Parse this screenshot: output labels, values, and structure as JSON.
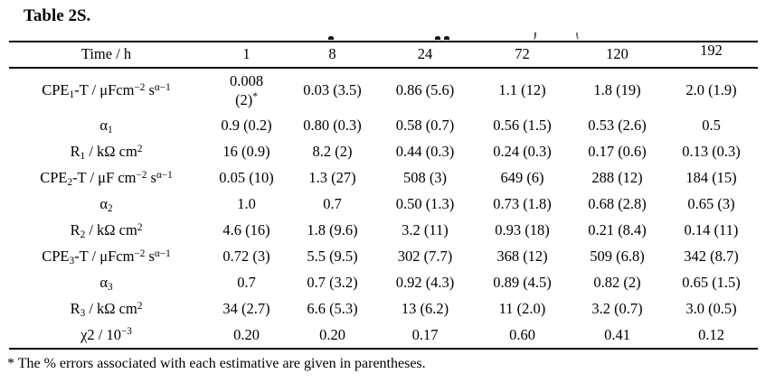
{
  "title": "Table 2S.",
  "table": {
    "header": {
      "label": "Time / h",
      "columns": [
        "1",
        "8",
        "24",
        "72",
        "120",
        "192"
      ]
    },
    "rows": [
      {
        "label_parts": [
          {
            "t": "CPE"
          },
          {
            "t": "1",
            "s": "sub"
          },
          {
            "t": "-T / μFcm"
          },
          {
            "t": "−2",
            "s": "sup"
          },
          {
            "t": " s"
          },
          {
            "t": "α−1",
            "s": "sup"
          }
        ],
        "cells": [
          {
            "parts": [
              {
                "t": "0.008"
              },
              {
                "br": true
              },
              {
                "t": "(2)"
              },
              {
                "t": "*",
                "s": "sup"
              }
            ]
          },
          "0.03 (3.5)",
          "0.86 (5.6)",
          "1.1 (12)",
          "1.8 (19)",
          "2.0 (1.9)"
        ]
      },
      {
        "label_parts": [
          {
            "t": "α"
          },
          {
            "t": "1",
            "s": "sub"
          }
        ],
        "cells": [
          "0.9 (0.2)",
          "0.80 (0.3)",
          "0.58 (0.7)",
          "0.56 (1.5)",
          "0.53 (2.6)",
          "0.5"
        ]
      },
      {
        "label_parts": [
          {
            "t": "R"
          },
          {
            "t": "1",
            "s": "sub"
          },
          {
            "t": " / kΩ cm"
          },
          {
            "t": "2",
            "s": "sup"
          }
        ],
        "cells": [
          "16 (0.9)",
          "8.2 (2)",
          "0.44 (0.3)",
          "0.24 (0.3)",
          "0.17 (0.6)",
          "0.13 (0.3)"
        ]
      },
      {
        "label_parts": [
          {
            "t": "CPE"
          },
          {
            "t": "2",
            "s": "sub"
          },
          {
            "t": "-T / μF cm"
          },
          {
            "t": "−2",
            "s": "sup"
          },
          {
            "t": " s"
          },
          {
            "t": "α−1",
            "s": "sup"
          }
        ],
        "cells": [
          "0.05 (10)",
          "1.3 (27)",
          "508 (3)",
          "649 (6)",
          "288 (12)",
          "184 (15)"
        ]
      },
      {
        "label_parts": [
          {
            "t": "α"
          },
          {
            "t": "2",
            "s": "sub"
          }
        ],
        "cells": [
          "1.0",
          "0.7",
          "0.50 (1.3)",
          "0.73 (1.8)",
          "0.68 (2.8)",
          "0.65 (3)"
        ]
      },
      {
        "label_parts": [
          {
            "t": "R"
          },
          {
            "t": "2",
            "s": "sub"
          },
          {
            "t": " / kΩ cm"
          },
          {
            "t": "2",
            "s": "sup"
          }
        ],
        "cells": [
          "4.6 (16)",
          "1.8 (9.6)",
          "3.2 (11)",
          "0.93 (18)",
          "0.21 (8.4)",
          "0.14 (11)"
        ]
      },
      {
        "label_parts": [
          {
            "t": "CPE"
          },
          {
            "t": "3",
            "s": "sub"
          },
          {
            "t": "-T / μFcm"
          },
          {
            "t": "−2",
            "s": "sup"
          },
          {
            "t": " s"
          },
          {
            "t": "α−1",
            "s": "sup"
          }
        ],
        "cells": [
          "0.72 (3)",
          "5.5 (9.5)",
          "302 (7.7)",
          "368 (12)",
          "509 (6.8)",
          "342 (8.7)"
        ]
      },
      {
        "label_parts": [
          {
            "t": "α"
          },
          {
            "t": "3",
            "s": "sub"
          }
        ],
        "cells": [
          "0.7",
          "0.7 (3.2)",
          "0.92 (4.3)",
          "0.89 (4.5)",
          "0.82 (2)",
          "0.65 (1.5)"
        ]
      },
      {
        "label_parts": [
          {
            "t": "R"
          },
          {
            "t": "3",
            "s": "sub"
          },
          {
            "t": " / kΩ cm"
          },
          {
            "t": "2",
            "s": "sup"
          }
        ],
        "cells": [
          "34 (2.7)",
          "6.6 (5.3)",
          "13 (6.2)",
          "11 (2.0)",
          "3.2 (0.7)",
          "3.0 (0.5)"
        ]
      },
      {
        "label_parts": [
          {
            "t": "χ2 / 10"
          },
          {
            "t": "−3",
            "s": "sup"
          }
        ],
        "cells": [
          "0.20",
          "0.20",
          "0.17",
          "0.60",
          "0.41",
          "0.12"
        ]
      }
    ]
  },
  "footnote": "* The % errors associated with each estimative are given in parentheses.",
  "colors": {
    "text": "#000000",
    "rule": "#000000",
    "background": "#ffffff"
  }
}
